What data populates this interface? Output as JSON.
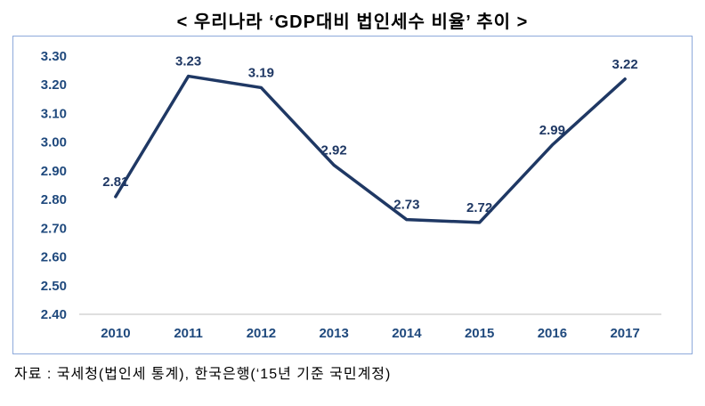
{
  "title": "<  우리나라  ‘GDP대비  법인세수  비율’  추이  >",
  "source": "자료 : 국세청(법인세 통계), 한국은행(‘15년 기준 국민계정)",
  "colors": {
    "line": "#1F3864",
    "value_label": "#1F3864",
    "axis_label": "#1F497D",
    "axis_line": "#BFBFBF",
    "frame_border": "#8EAADB"
  },
  "chart_data": {
    "type": "line",
    "categories": [
      "2010",
      "2011",
      "2012",
      "2013",
      "2014",
      "2015",
      "2016",
      "2017"
    ],
    "values": [
      2.81,
      3.23,
      3.19,
      2.92,
      2.73,
      2.72,
      2.99,
      3.22
    ],
    "title": "< 우리나라 ‘GDP대비 법인세수 비율’ 추이 >",
    "xlabel": "",
    "ylabel": "",
    "ylim": [
      2.4,
      3.3
    ],
    "y_ticks": [
      2.4,
      2.5,
      2.6,
      2.7,
      2.8,
      2.9,
      3.0,
      3.1,
      3.2,
      3.3
    ],
    "grid": false,
    "legend": "none",
    "value_label_decimals": 2
  }
}
